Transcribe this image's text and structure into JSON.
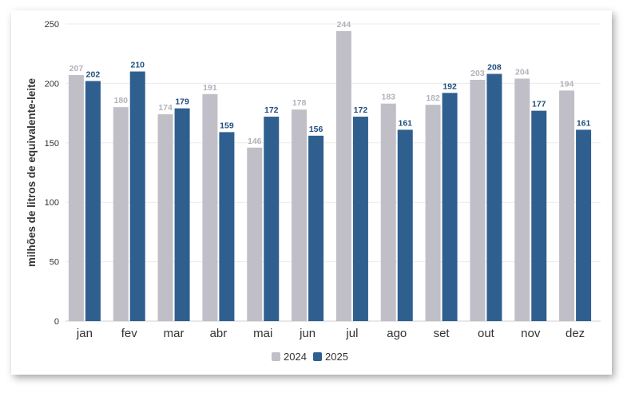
{
  "chart_data": {
    "type": "bar",
    "categories": [
      "jan",
      "fev",
      "mar",
      "abr",
      "mai",
      "jun",
      "jul",
      "ago",
      "set",
      "out",
      "nov",
      "dez"
    ],
    "series": [
      {
        "name": "2024",
        "color": "#c0bfc8",
        "label_color": "#b3b2bc",
        "values": [
          207,
          180,
          174,
          191,
          146,
          178,
          244,
          183,
          182,
          203,
          204,
          194
        ]
      },
      {
        "name": "2025",
        "color": "#2f5f8f",
        "label_color": "#1f4e7d",
        "values": [
          202,
          210,
          179,
          159,
          172,
          156,
          172,
          161,
          192,
          208,
          177,
          161
        ]
      }
    ],
    "ylabel": "milhões de litros de equivalente-leite",
    "ylim": [
      0,
      250
    ],
    "yticks": [
      0,
      50,
      100,
      150,
      200,
      250
    ],
    "grid": true,
    "legend": "bottom-center"
  }
}
